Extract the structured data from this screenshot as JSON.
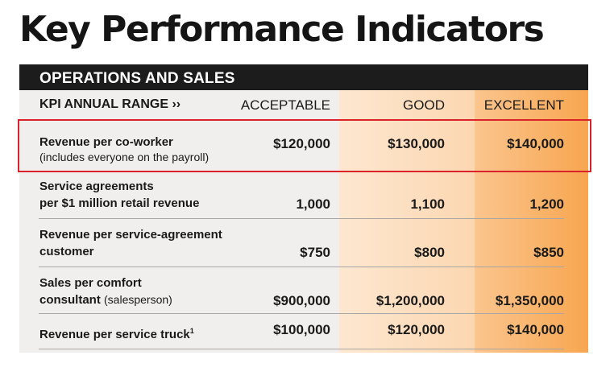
{
  "title": "Key Performance Indicators",
  "section": "OPERATIONS AND SALES",
  "header": {
    "kpi": "KPI ANNUAL RANGE ››",
    "acceptable": "ACCEPTABLE",
    "good": "GOOD",
    "excellent": "EXCELLENT"
  },
  "rows": [
    {
      "label_line1": "Revenue per co-worker",
      "label_line2": "(includes everyone on the payroll)",
      "acceptable": "$120,000",
      "good": "$130,000",
      "excellent": "$140,000",
      "highlighted": true
    },
    {
      "label_line1": "Service agreements",
      "label_line2": "per $1 million retail revenue",
      "acceptable": "1,000",
      "good": "1,100",
      "excellent": "1,200"
    },
    {
      "label_line1": "Revenue per service-agreement",
      "label_line2": "customer",
      "acceptable": "$750",
      "good": "$800",
      "excellent": "$850"
    },
    {
      "label_line1": "Sales per comfort",
      "label_line2": "consultant",
      "label_note": "(salesperson)",
      "acceptable": "$900,000",
      "good": "$1,200,000",
      "excellent": "$1,350,000"
    },
    {
      "label_line1": "Revenue per service truck",
      "label_footnote": "1",
      "acceptable": "$100,000",
      "good": "$120,000",
      "excellent": "$140,000"
    }
  ],
  "colors": {
    "highlight_border": "#d9222a",
    "section_bar": "#1c1c1c",
    "good_column": "#fcd7b1",
    "excellent_column": "#f7a650"
  }
}
